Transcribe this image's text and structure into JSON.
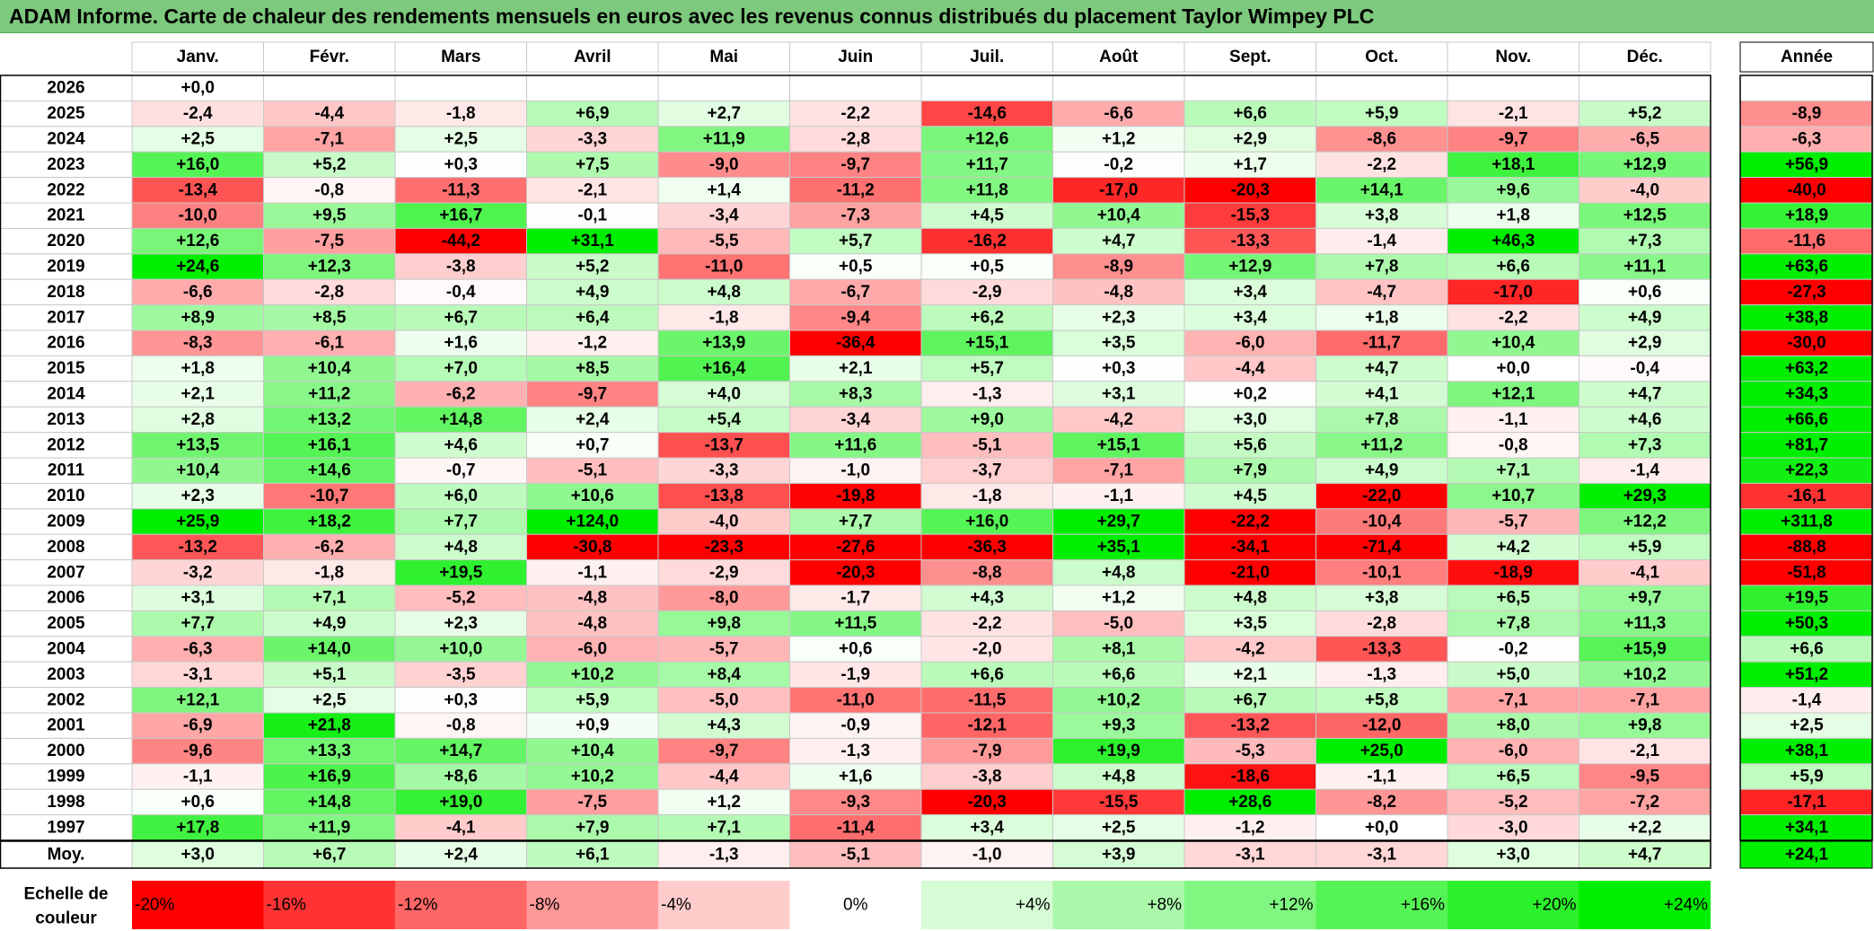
{
  "title": "ADAM Informe. Carte de chaleur des rendements mensuels en euros avec les revenus connus distribués du placement Taylor Wimpey PLC",
  "chart_data": {
    "type": "heatmap",
    "months": [
      "Janv.",
      "Févr.",
      "Mars",
      "Avril",
      "Mai",
      "Juin",
      "Juil.",
      "Août",
      "Sept.",
      "Oct.",
      "Nov.",
      "Déc."
    ],
    "year_header": "Année",
    "rows": [
      {
        "year": "2026",
        "values": [
          "+0,0",
          null,
          null,
          null,
          null,
          null,
          null,
          null,
          null,
          null,
          null,
          null
        ],
        "annual": null
      },
      {
        "year": "2025",
        "values": [
          "-2,4",
          "-4,4",
          "-1,8",
          "+6,9",
          "+2,7",
          "-2,2",
          "-14,6",
          "-6,6",
          "+6,6",
          "+5,9",
          "-2,1",
          "+5,2"
        ],
        "annual": "-8,9"
      },
      {
        "year": "2024",
        "values": [
          "+2,5",
          "-7,1",
          "+2,5",
          "-3,3",
          "+11,9",
          "-2,8",
          "+12,6",
          "+1,2",
          "+2,9",
          "-8,6",
          "-9,7",
          "-6,5"
        ],
        "annual": "-6,3"
      },
      {
        "year": "2023",
        "values": [
          "+16,0",
          "+5,2",
          "+0,3",
          "+7,5",
          "-9,0",
          "-9,7",
          "+11,7",
          "-0,2",
          "+1,7",
          "-2,2",
          "+18,1",
          "+12,9"
        ],
        "annual": "+56,9"
      },
      {
        "year": "2022",
        "values": [
          "-13,4",
          "-0,8",
          "-11,3",
          "-2,1",
          "+1,4",
          "-11,2",
          "+11,8",
          "-17,0",
          "-20,3",
          "+14,1",
          "+9,6",
          "-4,0"
        ],
        "annual": "-40,0"
      },
      {
        "year": "2021",
        "values": [
          "-10,0",
          "+9,5",
          "+16,7",
          "-0,1",
          "-3,4",
          "-7,3",
          "+4,5",
          "+10,4",
          "-15,3",
          "+3,8",
          "+1,8",
          "+12,5"
        ],
        "annual": "+18,9"
      },
      {
        "year": "2020",
        "values": [
          "+12,6",
          "-7,5",
          "-44,2",
          "+31,1",
          "-5,5",
          "+5,7",
          "-16,2",
          "+4,7",
          "-13,3",
          "-1,4",
          "+46,3",
          "+7,3"
        ],
        "annual": "-11,6"
      },
      {
        "year": "2019",
        "values": [
          "+24,6",
          "+12,3",
          "-3,8",
          "+5,2",
          "-11,0",
          "+0,5",
          "+0,5",
          "-8,9",
          "+12,9",
          "+7,8",
          "+6,6",
          "+11,1"
        ],
        "annual": "+63,6"
      },
      {
        "year": "2018",
        "values": [
          "-6,6",
          "-2,8",
          "-0,4",
          "+4,9",
          "+4,8",
          "-6,7",
          "-2,9",
          "-4,8",
          "+3,4",
          "-4,7",
          "-17,0",
          "+0,6"
        ],
        "annual": "-27,3"
      },
      {
        "year": "2017",
        "values": [
          "+8,9",
          "+8,5",
          "+6,7",
          "+6,4",
          "-1,8",
          "-9,4",
          "+6,2",
          "+2,3",
          "+3,4",
          "+1,8",
          "-2,2",
          "+4,9"
        ],
        "annual": "+38,8"
      },
      {
        "year": "2016",
        "values": [
          "-8,3",
          "-6,1",
          "+1,6",
          "-1,2",
          "+13,9",
          "-36,4",
          "+15,1",
          "+3,5",
          "-6,0",
          "-11,7",
          "+10,4",
          "+2,9"
        ],
        "annual": "-30,0"
      },
      {
        "year": "2015",
        "values": [
          "+1,8",
          "+10,4",
          "+7,0",
          "+8,5",
          "+16,4",
          "+2,1",
          "+5,7",
          "+0,3",
          "-4,4",
          "+4,7",
          "+0,0",
          "-0,4"
        ],
        "annual": "+63,2"
      },
      {
        "year": "2014",
        "values": [
          "+2,1",
          "+11,2",
          "-6,2",
          "-9,7",
          "+4,0",
          "+8,3",
          "-1,3",
          "+3,1",
          "+0,2",
          "+4,1",
          "+12,1",
          "+4,7"
        ],
        "annual": "+34,3"
      },
      {
        "year": "2013",
        "values": [
          "+2,8",
          "+13,2",
          "+14,8",
          "+2,4",
          "+5,4",
          "-3,4",
          "+9,0",
          "-4,2",
          "+3,0",
          "+7,8",
          "-1,1",
          "+4,6"
        ],
        "annual": "+66,6"
      },
      {
        "year": "2012",
        "values": [
          "+13,5",
          "+16,1",
          "+4,6",
          "+0,7",
          "-13,7",
          "+11,6",
          "-5,1",
          "+15,1",
          "+5,6",
          "+11,2",
          "-0,8",
          "+7,3"
        ],
        "annual": "+81,7"
      },
      {
        "year": "2011",
        "values": [
          "+10,4",
          "+14,6",
          "-0,7",
          "-5,1",
          "-3,3",
          "-1,0",
          "-3,7",
          "-7,1",
          "+7,9",
          "+4,9",
          "+7,1",
          "-1,4"
        ],
        "annual": "+22,3"
      },
      {
        "year": "2010",
        "values": [
          "+2,3",
          "-10,7",
          "+6,0",
          "+10,6",
          "-13,8",
          "-19,8",
          "-1,8",
          "-1,1",
          "+4,5",
          "-22,0",
          "+10,7",
          "+29,3"
        ],
        "annual": "-16,1"
      },
      {
        "year": "2009",
        "values": [
          "+25,9",
          "+18,2",
          "+7,7",
          "+124,0",
          "-4,0",
          "+7,7",
          "+16,0",
          "+29,7",
          "-22,2",
          "-10,4",
          "-5,7",
          "+12,2"
        ],
        "annual": "+311,8"
      },
      {
        "year": "2008",
        "values": [
          "-13,2",
          "-6,2",
          "+4,8",
          "-30,8",
          "-23,3",
          "-27,6",
          "-36,3",
          "+35,1",
          "-34,1",
          "-71,4",
          "+4,2",
          "+5,9"
        ],
        "annual": "-88,8"
      },
      {
        "year": "2007",
        "values": [
          "-3,2",
          "-1,8",
          "+19,5",
          "-1,1",
          "-2,9",
          "-20,3",
          "-8,8",
          "+4,8",
          "-21,0",
          "-10,1",
          "-18,9",
          "-4,1"
        ],
        "annual": "-51,8"
      },
      {
        "year": "2006",
        "values": [
          "+3,1",
          "+7,1",
          "-5,2",
          "-4,8",
          "-8,0",
          "-1,7",
          "+4,3",
          "+1,2",
          "+4,8",
          "+3,8",
          "+6,5",
          "+9,7"
        ],
        "annual": "+19,5"
      },
      {
        "year": "2005",
        "values": [
          "+7,7",
          "+4,9",
          "+2,3",
          "-4,8",
          "+9,8",
          "+11,5",
          "-2,2",
          "-5,0",
          "+3,5",
          "-2,8",
          "+7,8",
          "+11,3"
        ],
        "annual": "+50,3"
      },
      {
        "year": "2004",
        "values": [
          "-6,3",
          "+14,0",
          "+10,0",
          "-6,0",
          "-5,7",
          "+0,6",
          "-2,0",
          "+8,1",
          "-4,2",
          "-13,3",
          "-0,2",
          "+15,9"
        ],
        "annual": "+6,6"
      },
      {
        "year": "2003",
        "values": [
          "-3,1",
          "+5,1",
          "-3,5",
          "+10,2",
          "+8,4",
          "-1,9",
          "+6,6",
          "+6,6",
          "+2,1",
          "-1,3",
          "+5,0",
          "+10,2"
        ],
        "annual": "+51,2"
      },
      {
        "year": "2002",
        "values": [
          "+12,1",
          "+2,5",
          "+0,3",
          "+5,9",
          "-5,0",
          "-11,0",
          "-11,5",
          "+10,2",
          "+6,7",
          "+5,8",
          "-7,1",
          "-7,1"
        ],
        "annual": "-1,4"
      },
      {
        "year": "2001",
        "values": [
          "-6,9",
          "+21,8",
          "-0,8",
          "+0,9",
          "+4,3",
          "-0,9",
          "-12,1",
          "+9,3",
          "-13,2",
          "-12,0",
          "+8,0",
          "+9,8"
        ],
        "annual": "+2,5"
      },
      {
        "year": "2000",
        "values": [
          "-9,6",
          "+13,3",
          "+14,7",
          "+10,4",
          "-9,7",
          "-1,3",
          "-7,9",
          "+19,9",
          "-5,3",
          "+25,0",
          "-6,0",
          "-2,1"
        ],
        "annual": "+38,1"
      },
      {
        "year": "1999",
        "values": [
          "-1,1",
          "+16,9",
          "+8,6",
          "+10,2",
          "-4,4",
          "+1,6",
          "-3,8",
          "+4,8",
          "-18,6",
          "-1,1",
          "+6,5",
          "-9,5"
        ],
        "annual": "+5,9"
      },
      {
        "year": "1998",
        "values": [
          "+0,6",
          "+14,8",
          "+19,0",
          "-7,5",
          "+1,2",
          "-9,3",
          "-20,3",
          "-15,5",
          "+28,6",
          "-8,2",
          "-5,2",
          "-7,2"
        ],
        "annual": "-17,1"
      },
      {
        "year": "1997",
        "values": [
          "+17,8",
          "+11,9",
          "-4,1",
          "+7,9",
          "+7,1",
          "-11,4",
          "+3,4",
          "+2,5",
          "-1,2",
          "+0,0",
          "-3,0",
          "+2,2"
        ],
        "annual": "+34,1"
      }
    ],
    "average_label": "Moy.",
    "averages": [
      "+3,0",
      "+6,7",
      "+2,4",
      "+6,1",
      "-1,3",
      "-5,1",
      "-1,0",
      "+3,9",
      "-3,1",
      "-3,1",
      "+3,0",
      "+4,7"
    ],
    "average_annual": "+24,1",
    "scale_label_line1": "Echelle de",
    "scale_label_line2": "couleur",
    "scale": [
      {
        "label": "-20%",
        "value": -20
      },
      {
        "label": "-16%",
        "value": -16
      },
      {
        "label": "-12%",
        "value": -12
      },
      {
        "label": "-8%",
        "value": -8
      },
      {
        "label": "-4%",
        "value": -4
      },
      {
        "label": "0%",
        "value": 0
      },
      {
        "label": "+4%",
        "value": 4
      },
      {
        "label": "+8%",
        "value": 8
      },
      {
        "label": "+12%",
        "value": 12
      },
      {
        "label": "+16%",
        "value": 16
      },
      {
        "label": "+20%",
        "value": 20
      },
      {
        "label": "+24%",
        "value": 24
      }
    ],
    "colors": {
      "negative_max": "#ff0000",
      "neutral": "#ffffff",
      "positive_max": "#00ee00",
      "title_bg": "#7dc97d"
    }
  }
}
